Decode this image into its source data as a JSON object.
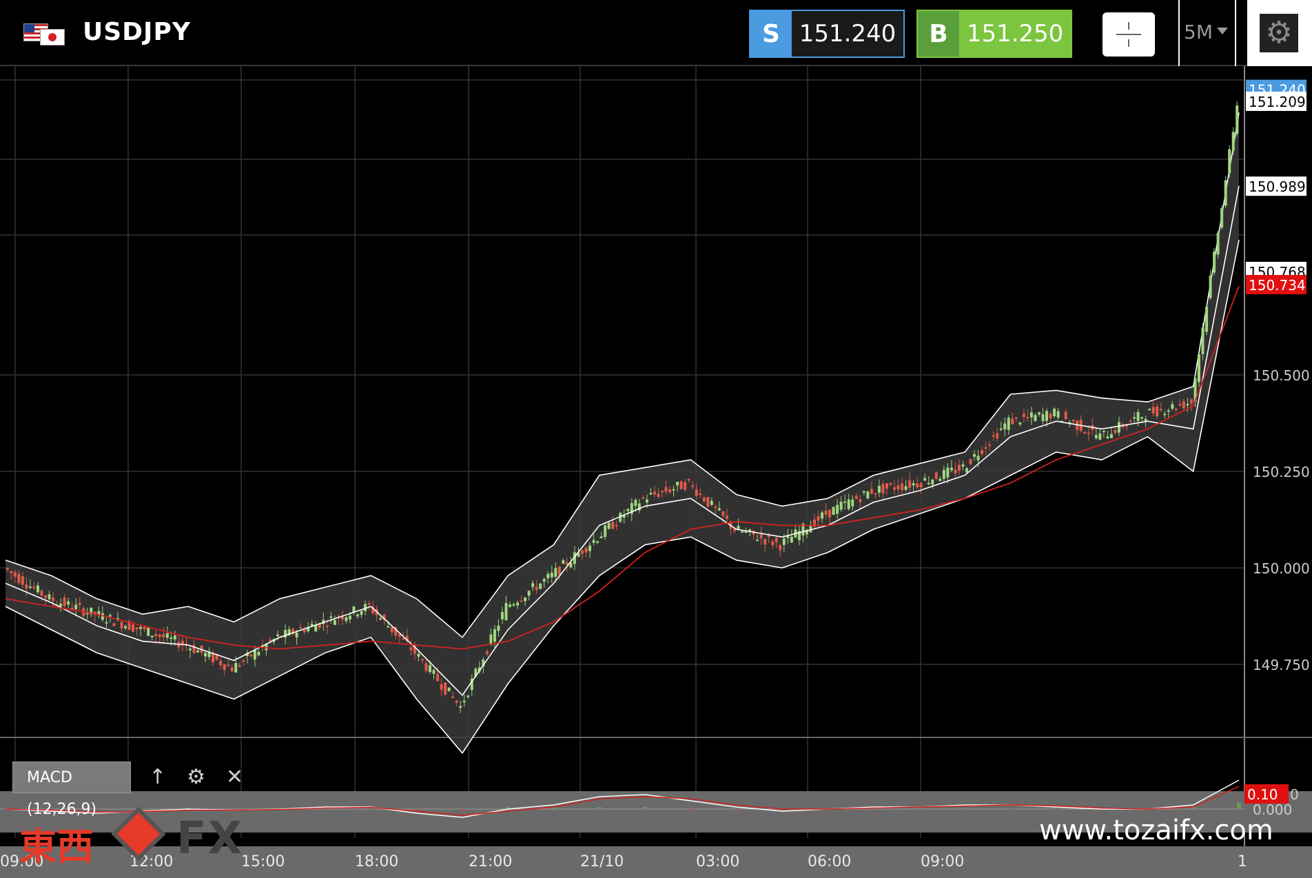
{
  "header": {
    "symbol": "USDJPY",
    "sell_tag": "S",
    "sell_price": "151.240",
    "buy_tag": "B",
    "buy_price": "151.250",
    "timeframe": "5M",
    "icons": [
      "us-flag-icon",
      "jp-flag-icon",
      "crosshair-icon",
      "caret-down-icon",
      "settings-icon"
    ]
  },
  "indicator": {
    "label": "MACD (12,26,9)",
    "icons": [
      "arrow-up-icon",
      "gear-icon",
      "close-icon"
    ]
  },
  "price_axis": {
    "labels": [
      "150.500",
      "150.250",
      "150.000",
      "149.750"
    ],
    "markers": [
      {
        "value": "151.240",
        "color": "#4a9be0",
        "text_color": "#ffffff"
      },
      {
        "value": "151.209",
        "color": "#ffffff",
        "text_color": "#000000"
      },
      {
        "value": "150.989",
        "color": "#ffffff",
        "text_color": "#000000"
      },
      {
        "value": "150.768",
        "color": "#ffffff",
        "text_color": "#000000"
      },
      {
        "value": "150.734",
        "color": "#e01010",
        "text_color": "#ffffff"
      }
    ]
  },
  "macd_axis": {
    "zero_label": "0.000",
    "marker": {
      "value": "0.10",
      "suffix": "0"
    }
  },
  "time_axis": {
    "labels": [
      "09:00",
      "12:00",
      "15:00",
      "18:00",
      "21:00",
      "21/10",
      "03:00",
      "06:00",
      "09:00",
      "1"
    ]
  },
  "watermark": {
    "brand_kanji": "東西",
    "brand_fx": "FX",
    "url": "www.tozaifx.com"
  },
  "chart_data": {
    "type": "candlestick",
    "title": "",
    "symbol": "USDJPY",
    "timeframe": "5M",
    "ylim": [
      149.55,
      151.3
    ],
    "grid": true,
    "x_ticks": [
      "09:00",
      "12:00",
      "15:00",
      "18:00",
      "21:00",
      "21/10",
      "03:00",
      "06:00",
      "09:00",
      "1"
    ],
    "y_ticks": [
      150.5,
      150.25,
      150.0,
      149.75
    ],
    "x_hours": [
      0,
      1,
      2,
      3,
      4,
      5,
      6,
      7,
      8,
      9,
      10,
      11,
      12,
      13,
      14,
      15,
      16,
      17,
      18,
      19,
      20,
      21,
      22,
      23,
      24,
      25,
      26,
      27
    ],
    "close": [
      150.0,
      149.92,
      149.88,
      149.84,
      149.8,
      149.74,
      149.82,
      149.86,
      149.9,
      149.78,
      149.64,
      149.9,
      149.98,
      150.08,
      150.18,
      150.22,
      150.1,
      150.06,
      150.14,
      150.2,
      150.22,
      150.26,
      150.38,
      150.4,
      150.34,
      150.4,
      150.43,
      151.2
    ],
    "bollinger_upper": [
      150.02,
      149.98,
      149.92,
      149.88,
      149.9,
      149.86,
      149.92,
      149.95,
      149.98,
      149.92,
      149.82,
      149.98,
      150.06,
      150.24,
      150.26,
      150.28,
      150.19,
      150.16,
      150.18,
      150.24,
      150.27,
      150.3,
      150.45,
      150.46,
      150.44,
      150.43,
      150.47,
      151.18
    ],
    "bollinger_lower": [
      149.9,
      149.84,
      149.78,
      149.74,
      149.7,
      149.66,
      149.72,
      149.78,
      149.82,
      149.66,
      149.52,
      149.7,
      149.85,
      149.98,
      150.06,
      150.08,
      150.02,
      150.0,
      150.04,
      150.1,
      150.14,
      150.18,
      150.24,
      150.3,
      150.28,
      150.34,
      150.25,
      150.85
    ],
    "bollinger_middle": [
      149.96,
      149.91,
      149.85,
      149.81,
      149.8,
      149.76,
      149.82,
      149.86,
      149.9,
      149.79,
      149.67,
      149.84,
      149.96,
      150.11,
      150.16,
      150.18,
      150.1,
      150.08,
      150.11,
      150.17,
      150.2,
      150.24,
      150.34,
      150.38,
      150.36,
      150.38,
      150.36,
      150.99
    ],
    "moving_average": [
      149.92,
      149.9,
      149.88,
      149.85,
      149.82,
      149.8,
      149.79,
      149.8,
      149.81,
      149.8,
      149.79,
      149.81,
      149.86,
      149.94,
      150.04,
      150.1,
      150.12,
      150.11,
      150.11,
      150.13,
      150.15,
      150.18,
      150.22,
      150.28,
      150.32,
      150.36,
      150.42,
      150.73
    ],
    "macd": {
      "zero": 0.0,
      "macd_line": [
        0.0,
        -0.01,
        -0.02,
        -0.01,
        0.0,
        -0.005,
        0.0,
        0.01,
        0.01,
        -0.02,
        -0.04,
        0.0,
        0.02,
        0.06,
        0.07,
        0.04,
        0.01,
        -0.01,
        0.0,
        0.01,
        0.01,
        0.02,
        0.02,
        0.01,
        0.0,
        0.0,
        0.02,
        0.14
      ],
      "signal_line": [
        0.0,
        -0.005,
        -0.015,
        -0.012,
        -0.005,
        -0.005,
        -0.002,
        0.005,
        0.008,
        -0.01,
        -0.03,
        -0.01,
        0.01,
        0.05,
        0.06,
        0.05,
        0.02,
        0.0,
        0.0,
        0.005,
        0.01,
        0.015,
        0.02,
        0.015,
        0.005,
        0.0,
        0.01,
        0.11
      ]
    }
  }
}
